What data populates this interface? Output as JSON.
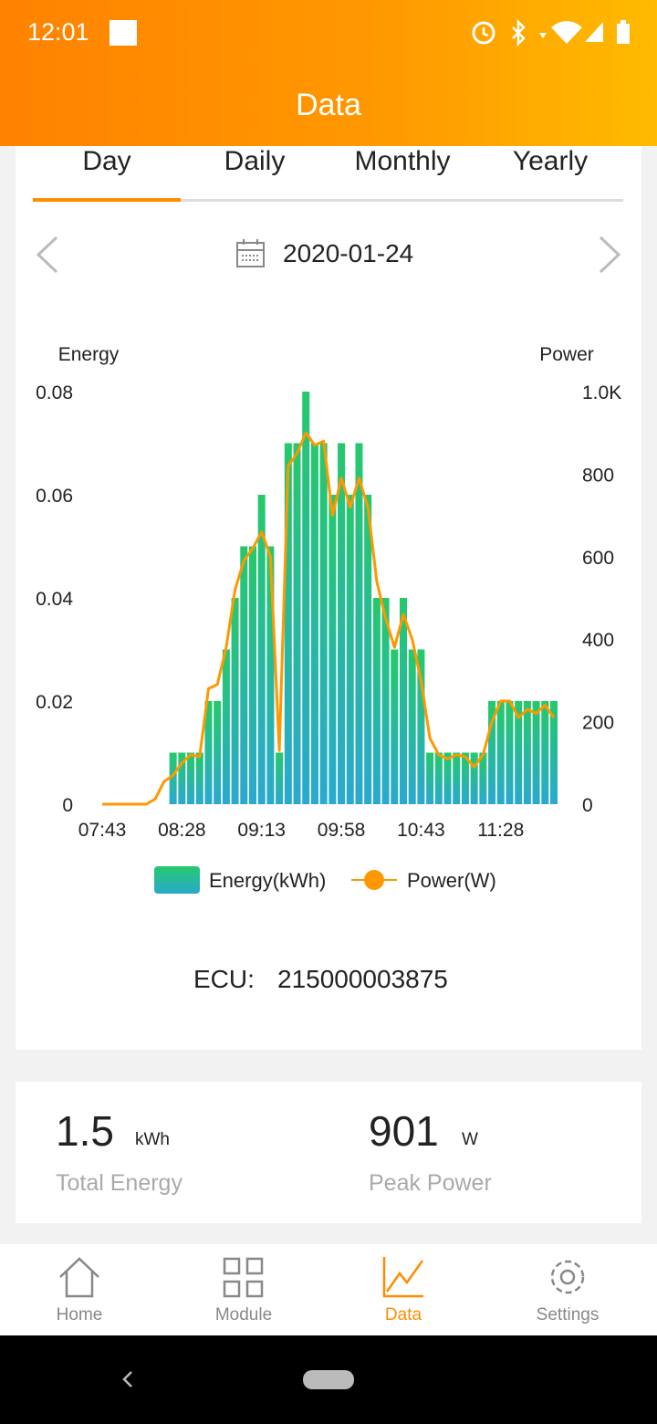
{
  "status": {
    "time": "12:01"
  },
  "header": {
    "title": "Data"
  },
  "tabs": [
    "Day",
    "Daily",
    "Monthly",
    "Yearly"
  ],
  "date": "2020-01-24",
  "chart_data": {
    "type": "bar",
    "ylabel": "Energy",
    "y2label": "Power",
    "categories": [
      "07:43",
      null,
      null,
      null,
      null,
      null,
      null,
      null,
      null,
      "08:28",
      null,
      null,
      null,
      null,
      null,
      null,
      null,
      null,
      "09:13",
      null,
      null,
      null,
      null,
      null,
      null,
      null,
      null,
      "09:58",
      null,
      null,
      null,
      null,
      null,
      null,
      null,
      null,
      "10:43",
      null,
      null,
      null,
      null,
      null,
      null,
      null,
      null,
      "11:28",
      null,
      null,
      null,
      null,
      null,
      null
    ],
    "series": [
      {
        "name": "Energy(kWh)",
        "type": "bar",
        "color": "#25c96a",
        "values": [
          0,
          0,
          0,
          0,
          0,
          0,
          0,
          0,
          0.01,
          0.01,
          0.01,
          0.01,
          0.02,
          0.02,
          0.03,
          0.04,
          0.05,
          0.05,
          0.06,
          0.05,
          0.01,
          0.07,
          0.07,
          0.08,
          0.07,
          0.07,
          0.06,
          0.07,
          0.06,
          0.07,
          0.06,
          0.04,
          0.04,
          0.03,
          0.04,
          0.03,
          0.03,
          0.01,
          0.01,
          0.01,
          0.01,
          0.01,
          0.01,
          0.01,
          0.02,
          0.02,
          0.02,
          0.02,
          0.02,
          0.02,
          0.02,
          0.02
        ]
      },
      {
        "name": "Power(W)",
        "type": "line",
        "axis": "y2",
        "color": "#ff9800",
        "values": [
          0,
          0,
          0,
          0,
          0,
          0,
          13,
          55,
          70,
          100,
          120,
          115,
          280,
          290,
          380,
          520,
          590,
          620,
          660,
          600,
          130,
          820,
          850,
          900,
          870,
          880,
          700,
          790,
          720,
          790,
          720,
          540,
          450,
          380,
          460,
          400,
          300,
          160,
          120,
          110,
          120,
          115,
          90,
          120,
          200,
          250,
          250,
          210,
          230,
          220,
          240,
          210
        ]
      }
    ],
    "ylim": [
      0,
      0.08
    ],
    "yticks": [
      0,
      0.02,
      0.04,
      0.06,
      0.08
    ],
    "y2lim": [
      0,
      1000
    ],
    "y2ticks": [
      0,
      200,
      400,
      600,
      800,
      {
        "value": 1000,
        "label": "1.0K"
      }
    ],
    "legend": "bottom"
  },
  "ecu": {
    "label": "ECU:",
    "value": "215000003875"
  },
  "summary": [
    {
      "value": "1.5",
      "unit": "kWh",
      "label": "Total Energy"
    },
    {
      "value": "901",
      "unit": "W",
      "label": "Peak Power"
    }
  ],
  "nav": [
    "Home",
    "Module",
    "Data",
    "Settings"
  ]
}
